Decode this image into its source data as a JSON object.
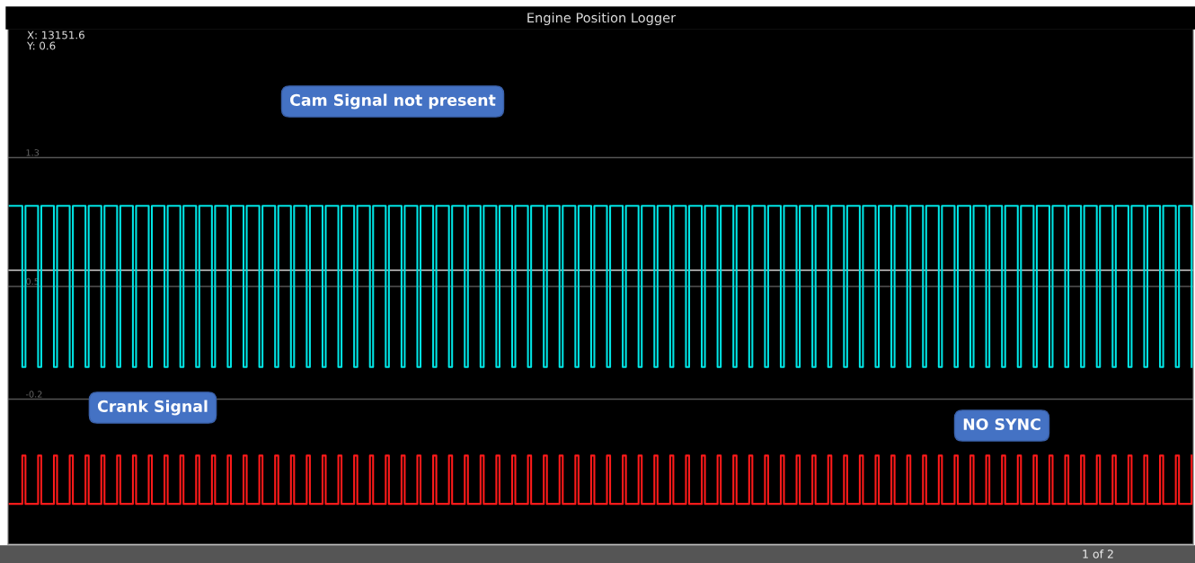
{
  "chart_data": {
    "type": "step",
    "title": "Engine Position Logger",
    "categories": [
      null,
      null,
      null,
      null,
      null,
      null,
      null,
      null,
      null,
      null,
      null,
      null,
      null,
      null,
      null,
      null,
      null,
      null,
      null,
      null,
      null,
      null,
      null,
      null,
      null,
      null,
      null,
      null,
      null,
      null,
      null,
      null,
      null,
      null,
      null,
      null,
      null,
      null,
      null,
      null,
      null,
      null,
      null,
      null,
      null,
      null,
      null,
      null,
      null,
      null,
      null,
      null,
      null,
      null,
      null,
      null,
      null,
      null,
      null,
      null,
      null,
      null,
      null,
      null,
      null,
      null,
      null,
      null,
      null,
      null,
      null,
      null,
      null,
      null,
      null,
      null,
      null,
      null,
      null,
      null,
      null,
      null,
      null,
      null,
      null,
      null,
      null,
      null,
      null,
      null,
      null,
      null,
      null,
      null,
      null,
      null,
      null,
      null,
      null,
      null,
      null,
      null,
      null,
      null,
      null,
      null,
      null,
      null,
      null,
      null,
      null,
      null,
      null,
      null,
      null,
      null,
      null,
      null,
      null,
      null,
      null,
      null,
      null,
      null,
      null,
      null,
      null,
      null,
      null,
      null,
      null,
      null,
      null,
      null,
      null,
      null,
      null,
      null,
      null,
      null,
      null,
      null,
      null,
      null,
      null,
      null,
      null,
      null,
      null,
      null,
      null,
      null,
      null,
      null,
      null,
      null,
      null,
      null,
      null,
      null,
      null,
      null,
      null,
      null,
      null,
      null,
      null,
      null,
      null,
      null,
      null,
      null,
      null,
      null,
      null,
      null,
      null,
      null,
      null,
      null,
      null,
      null,
      null,
      null,
      null,
      null,
      null,
      null,
      null,
      null,
      null,
      null,
      null,
      null,
      null,
      null,
      null,
      null,
      null,
      null,
      null,
      null,
      null,
      null,
      null,
      null,
      null,
      null,
      null,
      null,
      null,
      null,
      null,
      null,
      null,
      null,
      null,
      null,
      null,
      null,
      null,
      null,
      null,
      null,
      null,
      null,
      null,
      null,
      null,
      null,
      null,
      null,
      null,
      null,
      null,
      null,
      null,
      null,
      null,
      null,
      null,
      null,
      null,
      null,
      null,
      null,
      null,
      null,
      null,
      null,
      null,
      null,
      null,
      null,
      null,
      null,
      null,
      null,
      null,
      null,
      null,
      null,
      null,
      null,
      null,
      null,
      null,
      null,
      null,
      null,
      null,
      null,
      null,
      null,
      null,
      null,
      null,
      null,
      null,
      null,
      null,
      null,
      null,
      null,
      null,
      null,
      null,
      null,
      null,
      null,
      null,
      null,
      null,
      null,
      null,
      null,
      null,
      null,
      null,
      null,
      null,
      null,
      null,
      null,
      null,
      null,
      null,
      null,
      null,
      null,
      null,
      null,
      null,
      null,
      null,
      null,
      null,
      null,
      null,
      null,
      null,
      null,
      null,
      null,
      null,
      null,
      null,
      null,
      null,
      null,
      null,
      null,
      null,
      null,
      null,
      null,
      null,
      null,
      null,
      null,
      null,
      null,
      null,
      null,
      null,
      null,
      null,
      null,
      null,
      null,
      null,
      null,
      null,
      null,
      null,
      null,
      null,
      null,
      null,
      null,
      null,
      null,
      null,
      null,
      null,
      null,
      null,
      null,
      null,
      null,
      null,
      null,
      null,
      null,
      null
    ],
    "series": [
      {
        "color": "#00e5e5",
        "values": [
          1,
          1,
          1,
          1,
          0,
          1,
          1,
          1,
          1,
          0,
          1,
          1,
          1,
          1,
          0,
          1,
          1,
          1,
          1,
          0,
          1,
          1,
          1,
          1,
          0,
          1,
          1,
          1,
          1,
          0,
          1,
          1,
          1,
          1,
          0,
          1,
          1,
          1,
          1,
          0,
          1,
          1,
          1,
          1,
          0,
          1,
          1,
          1,
          1,
          0,
          1,
          1,
          1,
          1,
          0,
          1,
          1,
          1,
          1,
          0,
          1,
          1,
          1,
          1,
          0,
          1,
          1,
          1,
          1,
          0,
          1,
          1,
          1,
          1,
          0,
          1,
          1,
          1,
          1,
          0,
          1,
          1,
          1,
          1,
          0,
          1,
          1,
          1,
          1,
          0,
          1,
          1,
          1,
          1,
          0,
          1,
          1,
          1,
          1,
          0,
          1,
          1,
          1,
          1,
          0,
          1,
          1,
          1,
          1,
          0,
          1,
          1,
          1,
          1,
          0,
          1,
          1,
          1,
          1,
          0,
          1,
          1,
          1,
          1,
          0,
          1,
          1,
          1,
          1,
          0,
          1,
          1,
          1,
          1,
          0,
          1,
          1,
          1,
          1,
          0,
          1,
          1,
          1,
          1,
          0,
          1,
          1,
          1,
          1,
          0,
          1,
          1,
          1,
          1,
          0,
          1,
          1,
          1,
          1,
          0,
          1,
          1,
          1,
          1,
          0,
          1,
          1,
          1,
          1,
          0,
          1,
          1,
          1,
          1,
          0,
          1,
          1,
          1,
          1,
          0,
          1,
          1,
          1,
          1,
          0,
          1,
          1,
          1,
          1,
          0,
          1,
          1,
          1,
          1,
          0,
          1,
          1,
          1,
          1,
          0,
          1,
          1,
          1,
          1,
          0,
          1,
          1,
          1,
          1,
          0,
          1,
          1,
          1,
          1,
          0,
          1,
          1,
          1,
          1,
          0,
          1,
          1,
          1,
          1,
          0,
          1,
          1,
          1,
          1,
          0,
          1,
          1,
          1,
          1,
          0,
          1,
          1,
          1,
          1,
          0,
          1,
          1,
          1,
          1,
          0,
          1,
          1,
          1,
          1,
          0,
          1,
          1,
          1,
          1,
          0,
          1,
          1,
          1,
          1,
          0,
          1,
          1,
          1,
          1,
          0,
          1,
          1,
          1,
          1,
          0,
          1,
          1,
          1,
          1,
          0,
          1,
          1,
          1,
          1,
          0,
          1,
          1,
          1,
          1,
          0,
          1,
          1,
          1,
          1,
          0,
          1,
          1,
          1,
          1,
          0,
          1,
          1,
          1,
          1,
          0,
          1,
          1,
          1,
          1,
          0,
          1,
          1,
          1,
          1,
          0,
          1,
          1,
          1,
          1,
          0,
          1,
          1,
          1,
          1,
          0,
          1,
          1,
          1,
          1,
          0,
          1,
          1,
          1,
          1,
          0,
          1,
          1,
          1,
          1,
          0,
          1,
          1,
          1,
          1,
          0,
          1,
          1,
          1,
          1,
          0,
          1,
          1,
          1,
          1,
          0,
          1,
          1,
          1,
          1,
          0,
          1,
          1,
          1,
          1,
          0,
          1,
          1,
          1,
          1,
          0,
          1,
          1,
          1,
          1,
          0,
          1,
          1,
          1,
          1,
          0
        ]
      },
      {
        "color": "#ff1a1a",
        "values": [
          -0.85,
          -0.85,
          -0.85,
          -0.85,
          -0.55,
          -0.85,
          -0.85,
          -0.85,
          -0.85,
          -0.55,
          -0.85,
          -0.85,
          -0.85,
          -0.85,
          -0.55,
          -0.85,
          -0.85,
          -0.85,
          -0.85,
          -0.55,
          -0.85,
          -0.85,
          -0.85,
          -0.85,
          -0.55,
          -0.85,
          -0.85,
          -0.85,
          -0.85,
          -0.55,
          -0.85,
          -0.85,
          -0.85,
          -0.85,
          -0.55,
          -0.85,
          -0.85,
          -0.85,
          -0.85,
          -0.55,
          -0.85,
          -0.85,
          -0.85,
          -0.85,
          -0.55,
          -0.85,
          -0.85,
          -0.85,
          -0.85,
          -0.55,
          -0.85,
          -0.85,
          -0.85,
          -0.85,
          -0.55,
          -0.85,
          -0.85,
          -0.85,
          -0.85,
          -0.55,
          -0.85,
          -0.85,
          -0.85,
          -0.85,
          -0.55,
          -0.85,
          -0.85,
          -0.85,
          -0.85,
          -0.55,
          -0.85,
          -0.85,
          -0.85,
          -0.85,
          -0.55,
          -0.85,
          -0.85,
          -0.85,
          -0.85,
          -0.55,
          -0.85,
          -0.85,
          -0.85,
          -0.85,
          -0.55,
          -0.85,
          -0.85,
          -0.85,
          -0.85,
          -0.55,
          -0.85,
          -0.85,
          -0.85,
          -0.85,
          -0.55,
          -0.85,
          -0.85,
          -0.85,
          -0.85,
          -0.55,
          -0.85,
          -0.85,
          -0.85,
          -0.85,
          -0.55,
          -0.85,
          -0.85,
          -0.85,
          -0.85,
          -0.55,
          -0.85,
          -0.85,
          -0.85,
          -0.85,
          -0.55,
          -0.85,
          -0.85,
          -0.85,
          -0.85,
          -0.55,
          -0.85,
          -0.85,
          -0.85,
          -0.85,
          -0.55,
          -0.85,
          -0.85,
          -0.85,
          -0.85,
          -0.55,
          -0.85,
          -0.85,
          -0.85,
          -0.85,
          -0.55,
          -0.85,
          -0.85,
          -0.85,
          -0.85,
          -0.55,
          -0.85,
          -0.85,
          -0.85,
          -0.85,
          -0.55,
          -0.85,
          -0.85,
          -0.85,
          -0.85,
          -0.55,
          -0.85,
          -0.85,
          -0.85,
          -0.85,
          -0.55,
          -0.85,
          -0.85,
          -0.85,
          -0.85,
          -0.55,
          -0.85,
          -0.85,
          -0.85,
          -0.85,
          -0.55,
          -0.85,
          -0.85,
          -0.85,
          -0.85,
          -0.55,
          -0.85,
          -0.85,
          -0.85,
          -0.85,
          -0.55,
          -0.85,
          -0.85,
          -0.85,
          -0.85,
          -0.55,
          -0.85,
          -0.85,
          -0.85,
          -0.85,
          -0.55,
          -0.85,
          -0.85,
          -0.85,
          -0.85,
          -0.55,
          -0.85,
          -0.85,
          -0.85,
          -0.85,
          -0.55,
          -0.85,
          -0.85,
          -0.85,
          -0.85,
          -0.55,
          -0.85,
          -0.85,
          -0.85,
          -0.85,
          -0.55,
          -0.85,
          -0.85,
          -0.85,
          -0.85,
          -0.55,
          -0.85,
          -0.85,
          -0.85,
          -0.85,
          -0.55,
          -0.85,
          -0.85,
          -0.85,
          -0.85,
          -0.55,
          -0.85,
          -0.85,
          -0.85,
          -0.85,
          -0.55,
          -0.85,
          -0.85,
          -0.85,
          -0.85,
          -0.55,
          -0.85,
          -0.85,
          -0.85,
          -0.85,
          -0.55,
          -0.85,
          -0.85,
          -0.85,
          -0.85,
          -0.55,
          -0.85,
          -0.85,
          -0.85,
          -0.85,
          -0.55,
          -0.85,
          -0.85,
          -0.85,
          -0.85,
          -0.55,
          -0.85,
          -0.85,
          -0.85,
          -0.85,
          -0.55,
          -0.85,
          -0.85,
          -0.85,
          -0.85,
          -0.55,
          -0.85,
          -0.85,
          -0.85,
          -0.85,
          -0.55,
          -0.85,
          -0.85,
          -0.85,
          -0.85,
          -0.55,
          -0.85,
          -0.85,
          -0.85,
          -0.85,
          -0.55,
          -0.85,
          -0.85,
          -0.85,
          -0.85,
          -0.55,
          -0.85,
          -0.85,
          -0.85,
          -0.85,
          -0.55,
          -0.85,
          -0.85,
          -0.85,
          -0.85,
          -0.55,
          -0.85,
          -0.85,
          -0.85,
          -0.85,
          -0.55,
          -0.85,
          -0.85,
          -0.85,
          -0.85,
          -0.55,
          -0.85,
          -0.85,
          -0.85,
          -0.85,
          -0.55,
          -0.85,
          -0.85,
          -0.85,
          -0.85,
          -0.55,
          -0.85,
          -0.85,
          -0.85,
          -0.85,
          -0.55,
          -0.85,
          -0.85,
          -0.85,
          -0.85,
          -0.55,
          -0.85,
          -0.85,
          -0.85,
          -0.85,
          -0.55,
          -0.85,
          -0.85,
          -0.85,
          -0.85,
          -0.55,
          -0.85,
          -0.85,
          -0.85,
          -0.85,
          -0.55,
          -0.85,
          -0.85,
          -0.85,
          -0.85,
          -0.55,
          -0.85,
          -0.85,
          -0.85,
          -0.85,
          -0.55,
          -0.85,
          -0.85,
          -0.85,
          -0.85,
          -0.55,
          -0.85,
          -0.85,
          -0.85,
          -0.85,
          -0.55,
          -0.85,
          -0.85,
          -0.85,
          -0.85,
          -0.55,
          -0.85,
          -0.85,
          -0.85,
          -0.85,
          -0.55,
          -0.85,
          -0.85,
          -0.85,
          -0.85,
          -0.55,
          -0.85,
          -0.85,
          -0.85,
          -0.85,
          -0.55
        ]
      }
    ],
    "ylim": [
      -1.1,
      2.1
    ],
    "yticks": [
      1.3,
      0.5,
      -0.2
    ],
    "grid": "y",
    "ref_lines": [
      {
        "axis": "y",
        "value": 0.6,
        "color": "#cccccc"
      }
    ],
    "annotations": [
      "X: 13151.6",
      "Y: 0.6",
      "Cam Signal not present",
      "Crank Signal",
      "NO SYNC",
      "1 of 2"
    ]
  }
}
